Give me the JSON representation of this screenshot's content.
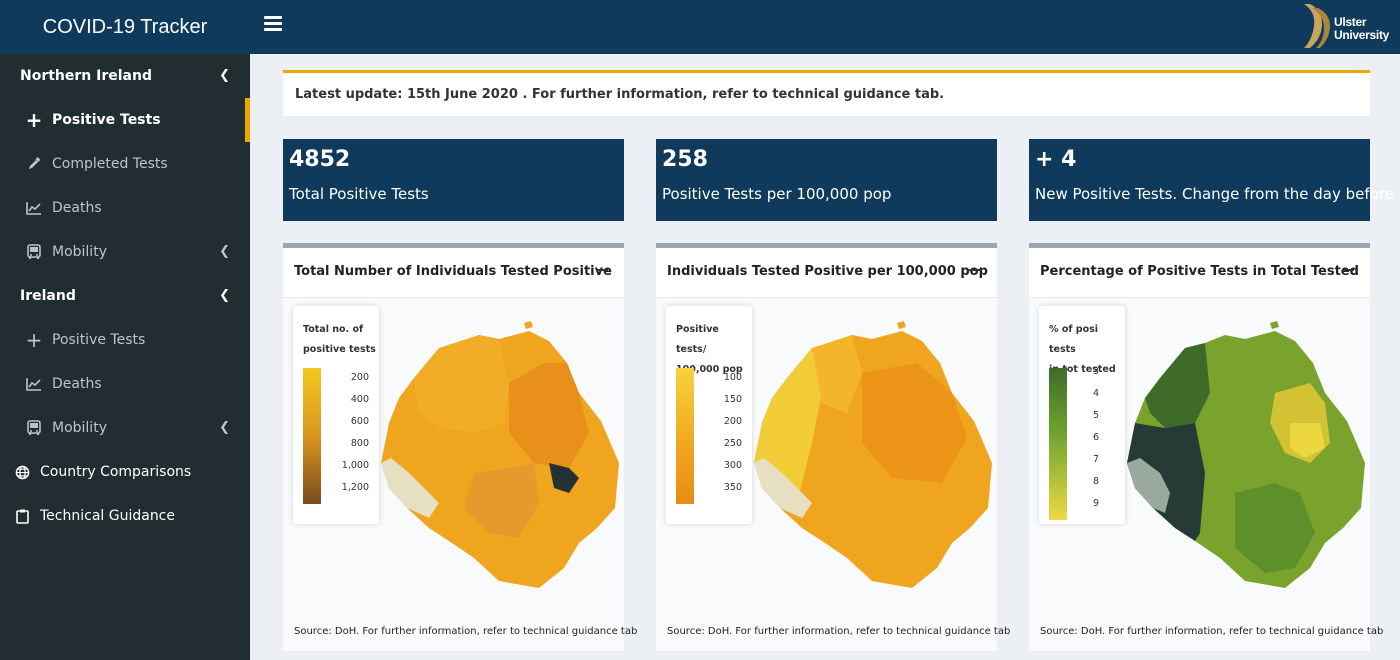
{
  "header": {
    "app_title": "COVID-19 Tracker",
    "logo_line1": "Ulster",
    "logo_line2": "University"
  },
  "sidebar": {
    "items": [
      {
        "label": "Northern Ireland",
        "icon": "none",
        "kind": "group"
      },
      {
        "label": "Positive Tests",
        "icon": "plus-icon",
        "kind": "sub",
        "active": true
      },
      {
        "label": "Completed Tests",
        "icon": "eyedropper-icon",
        "kind": "sub"
      },
      {
        "label": "Deaths",
        "icon": "line-chart-icon",
        "kind": "sub"
      },
      {
        "label": "Mobility",
        "icon": "bus-icon",
        "kind": "sub"
      },
      {
        "label": "Ireland",
        "icon": "none",
        "kind": "group"
      },
      {
        "label": "Positive Tests",
        "icon": "plus-icon",
        "kind": "sub"
      },
      {
        "label": "Deaths",
        "icon": "line-chart-icon",
        "kind": "sub"
      },
      {
        "label": "Mobility",
        "icon": "bus-icon",
        "kind": "sub"
      },
      {
        "label": "Country Comparisons",
        "icon": "globe-icon",
        "kind": "top"
      },
      {
        "label": "Technical Guidance",
        "icon": "clipboard-icon",
        "kind": "top"
      }
    ]
  },
  "update_banner": "Latest update: 15th June 2020 . For further information, refer to technical guidance tab.",
  "stats": [
    {
      "value": "4852",
      "label": "Total Positive Tests"
    },
    {
      "value": "258",
      "label": "Positive Tests per 100,000 pop"
    },
    {
      "value": "+ 4",
      "label": "New Positive Tests. Change from the day before"
    }
  ],
  "panels": [
    {
      "title": "Total Number of Individuals Tested Positive",
      "legend_title_line1": "Total no. of",
      "legend_title_line2": "positive tests",
      "legend_ticks": [
        "200",
        "400",
        "600",
        "800",
        "1,000",
        "1,200"
      ],
      "source": "Source: DoH. For further information, refer to technical guidance tab"
    },
    {
      "title": "Individuals Tested Positive per 100,000 pop",
      "legend_title_line1": "Positive tests/",
      "legend_title_line2": "100,000 pop",
      "legend_ticks": [
        "100",
        "150",
        "200",
        "250",
        "300",
        "350"
      ],
      "source": "Source: DoH. For further information, refer to technical guidance tab"
    },
    {
      "title": "Percentage of Positive Tests in Total Tested",
      "legend_title_line1": "% of posi tests",
      "legend_title_line2": "in tot tested",
      "legend_ticks": [
        "3",
        "4",
        "5",
        "6",
        "7",
        "8",
        "9"
      ],
      "source": "Source: DoH. For further information, refer to technical guidance tab"
    }
  ],
  "colors": {
    "navy": "#0f3a5b",
    "sidebar": "#222d32",
    "accent": "#f0a500"
  }
}
